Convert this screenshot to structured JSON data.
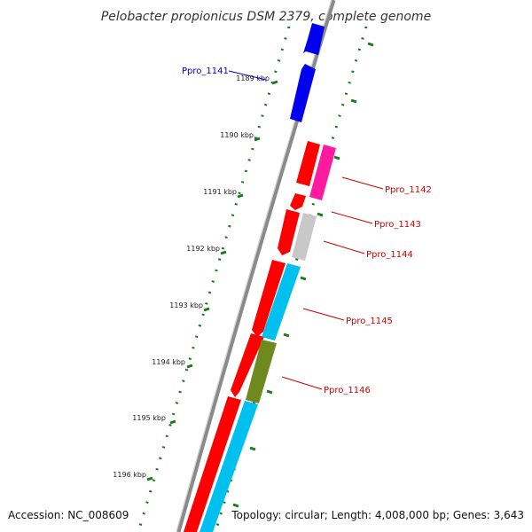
{
  "title": "Pelobacter propionicus DSM 2379, complete genome",
  "footer": {
    "accession": "Accession: NC_008609",
    "topology": "Topology: circular; Length: 4,008,000 bp; Genes: 3,643"
  },
  "colors": {
    "backbone": "#8a8a8a",
    "ticks": "#1a7a1a",
    "red": "#ff0000",
    "blue": "#0000ee",
    "magenta": "#ff1aa0",
    "gray": "#c8c8c8",
    "cyan": "#00c0f0",
    "olive": "#6e8a1e",
    "label_red": "#cc0000",
    "label_blue": "#0000cc"
  },
  "ruler": [
    {
      "label": "1189 kbp"
    },
    {
      "label": "1190 kbp"
    },
    {
      "label": "1191 kbp"
    },
    {
      "label": "1192 kbp"
    },
    {
      "label": "1193 kbp"
    },
    {
      "label": "1194 kbp"
    },
    {
      "label": "1195 kbp"
    },
    {
      "label": "1196 kbp"
    }
  ],
  "gene_labels": [
    {
      "name": "Ppro_1141",
      "color": "blue"
    },
    {
      "name": "Ppro_1142",
      "color": "red"
    },
    {
      "name": "Ppro_1143",
      "color": "red"
    },
    {
      "name": "Ppro_1144",
      "color": "red"
    },
    {
      "name": "Ppro_1145",
      "color": "red"
    },
    {
      "name": "Ppro_1146",
      "color": "red"
    }
  ]
}
